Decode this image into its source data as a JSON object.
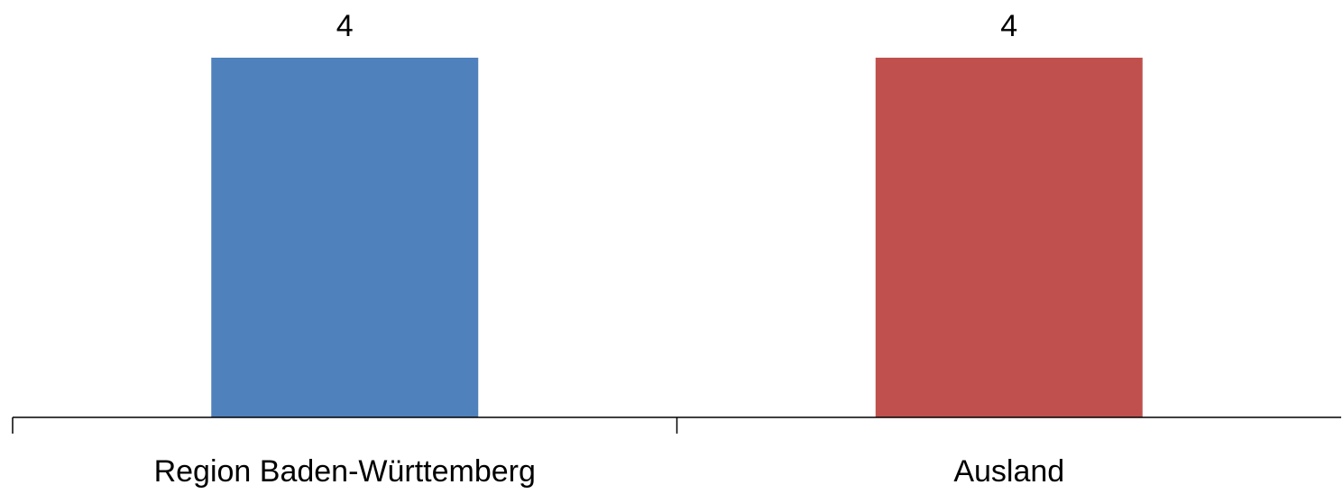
{
  "chart_data": {
    "type": "bar",
    "categories": [
      "Region Baden-Württemberg",
      "Ausland"
    ],
    "values": [
      4,
      4
    ],
    "data_labels": [
      "4",
      "4"
    ],
    "colors": [
      "#4F81BD",
      "#C0504D"
    ],
    "ylim": [
      0,
      4
    ],
    "grid": false,
    "legend": "none"
  }
}
